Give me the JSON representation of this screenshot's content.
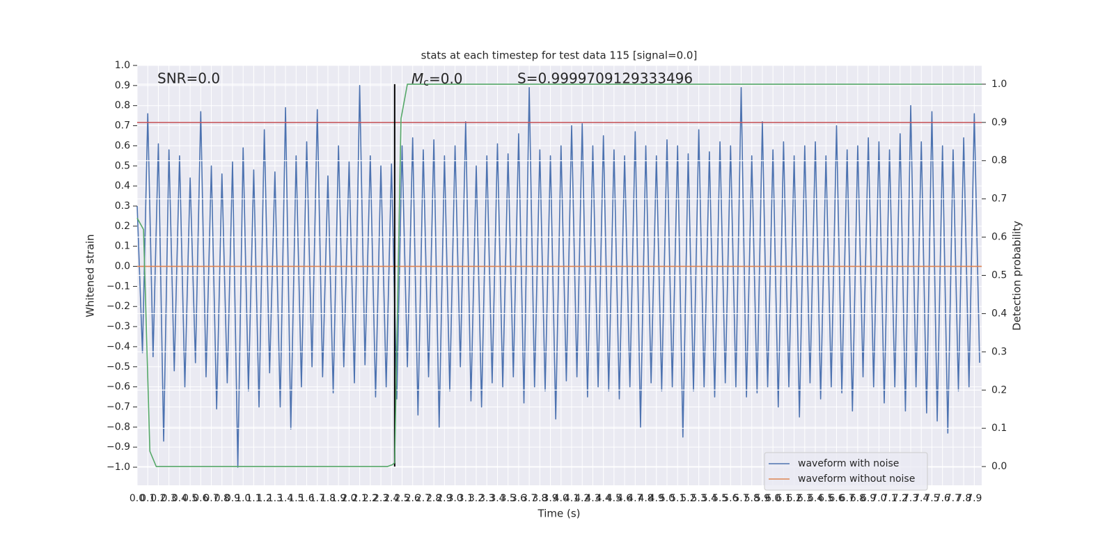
{
  "chart_data": {
    "type": "line",
    "title": "stats at each timestep for test data 115 [signal=0.0]",
    "x_label": "Time (s)",
    "y_label": "Whitened strain",
    "y2_label": "Detection probability",
    "annotations": [
      "SNR=0.0",
      {
        "symbol": "M",
        "subscript": "c",
        "text": "=0.0"
      },
      "S=0.9999709129333496"
    ],
    "xlim": [
      0,
      7.97
    ],
    "ylim": [
      -1.09,
      1.0
    ],
    "y2lim": [
      -0.049,
      1.049
    ],
    "xticks": [
      {
        "value": 0,
        "label": "0.0"
      },
      0.1,
      0.2,
      0.3,
      0.4,
      0.5,
      0.6,
      0.7,
      0.8,
      0.9,
      {
        "value": 1,
        "label": "1.0"
      },
      1.1,
      1.2,
      1.3,
      1.4,
      1.5,
      1.6,
      1.7,
      1.8,
      1.9,
      {
        "value": 2,
        "label": "2.0"
      },
      2.1,
      2.2,
      2.3,
      2.4,
      2.5,
      2.6,
      2.7,
      2.8,
      2.9,
      {
        "value": 3,
        "label": "3.0"
      },
      3.1,
      3.2,
      3.3,
      3.4,
      3.5,
      3.6,
      3.7,
      3.8,
      3.9,
      {
        "value": 4,
        "label": "4.0"
      },
      4.1,
      4.2,
      4.3,
      4.4,
      4.5,
      4.6,
      4.7,
      4.8,
      4.9,
      {
        "value": 5,
        "label": "5.0"
      },
      5.1,
      5.2,
      5.3,
      5.4,
      5.5,
      5.6,
      5.7,
      5.8,
      5.9,
      {
        "value": 6,
        "label": "6.0"
      },
      6.1,
      6.2,
      6.3,
      6.4,
      6.5,
      6.6,
      6.7,
      6.8,
      6.9,
      {
        "value": 7,
        "label": "7.0"
      },
      7.1,
      7.2,
      7.3,
      7.4,
      7.5,
      7.6,
      7.7,
      7.8,
      7.9
    ],
    "yticks": [
      {
        "value": -1,
        "label": "−1.0"
      },
      {
        "value": -0.9,
        "label": "−0.9"
      },
      {
        "value": -0.8,
        "label": "−0.8"
      },
      {
        "value": -0.7,
        "label": "−0.7"
      },
      {
        "value": -0.6,
        "label": "−0.6"
      },
      {
        "value": -0.5,
        "label": "−0.5"
      },
      {
        "value": -0.4,
        "label": "−0.4"
      },
      {
        "value": -0.3,
        "label": "−0.3"
      },
      {
        "value": -0.2,
        "label": "−0.2"
      },
      {
        "value": -0.1,
        "label": "−0.1"
      },
      {
        "value": 0,
        "label": "0.0"
      },
      0.1,
      0.2,
      0.3,
      0.4,
      0.5,
      0.6,
      0.7,
      0.8,
      0.9,
      {
        "value": 1,
        "label": "1.0"
      }
    ],
    "y2ticks": [
      {
        "value": 0,
        "label": "0.0"
      },
      0.1,
      0.2,
      0.3,
      0.4,
      0.5,
      0.6,
      0.7,
      0.8,
      0.9,
      {
        "value": 1,
        "label": "1.0"
      }
    ],
    "grid": true,
    "y2grid": true,
    "legend": "lower right",
    "hlines": [
      {
        "axis": "y2",
        "value": 0.9,
        "color": "#c44e52"
      }
    ],
    "vlines": [
      {
        "x": 2.43,
        "axis": "y2",
        "ymin": 0,
        "ymax": 1,
        "color": "#000000"
      }
    ],
    "series": [
      {
        "name": "waveform with noise",
        "color": "#4c72b0",
        "x": [
          0,
          0.05,
          0.1,
          0.15,
          0.2,
          0.25,
          0.3,
          0.35,
          0.4,
          0.45,
          0.5,
          0.55,
          0.6,
          0.65,
          0.7,
          0.75,
          0.8,
          0.85,
          0.9,
          0.95,
          1,
          1.05,
          1.1,
          1.15,
          1.2,
          1.25,
          1.3,
          1.35,
          1.4,
          1.45,
          1.5,
          1.55,
          1.6,
          1.65,
          1.7,
          1.75,
          1.8,
          1.85,
          1.9,
          1.95,
          2,
          2.05,
          2.1,
          2.15,
          2.2,
          2.25,
          2.3,
          2.35,
          2.4,
          2.45,
          2.5,
          2.55,
          2.6,
          2.65,
          2.7,
          2.75,
          2.8,
          2.85,
          2.9,
          2.95,
          3,
          3.05,
          3.1,
          3.15,
          3.2,
          3.25,
          3.3,
          3.35,
          3.4,
          3.45,
          3.5,
          3.55,
          3.6,
          3.65,
          3.7,
          3.75,
          3.8,
          3.85,
          3.9,
          3.95,
          4,
          4.05,
          4.1,
          4.15,
          4.2,
          4.25,
          4.3,
          4.35,
          4.4,
          4.45,
          4.5,
          4.55,
          4.6,
          4.65,
          4.7,
          4.75,
          4.8,
          4.85,
          4.9,
          4.95,
          5,
          5.05,
          5.1,
          5.15,
          5.2,
          5.25,
          5.3,
          5.35,
          5.4,
          5.45,
          5.5,
          5.55,
          5.6,
          5.65,
          5.7,
          5.75,
          5.8,
          5.85,
          5.9,
          5.95,
          6,
          6.05,
          6.1,
          6.15,
          6.2,
          6.25,
          6.3,
          6.35,
          6.4,
          6.45,
          6.5,
          6.55,
          6.6,
          6.65,
          6.7,
          6.75,
          6.8,
          6.85,
          6.9,
          6.95,
          7,
          7.05,
          7.1,
          7.15,
          7.2,
          7.25,
          7.3,
          7.35,
          7.4,
          7.45,
          7.5,
          7.55,
          7.6,
          7.65,
          7.7,
          7.75,
          7.8,
          7.85,
          7.9,
          7.95
        ],
        "values": [
          0.3,
          -0.43,
          0.76,
          -0.45,
          0.61,
          -0.87,
          0.58,
          -0.52,
          0.55,
          -0.6,
          0.44,
          -0.48,
          0.77,
          -0.55,
          0.5,
          -0.71,
          0.46,
          -0.58,
          0.52,
          -1.0,
          0.59,
          -0.62,
          0.48,
          -0.7,
          0.68,
          -0.53,
          0.47,
          -0.7,
          0.79,
          -0.81,
          0.55,
          -0.6,
          0.62,
          -0.5,
          0.78,
          -0.55,
          0.45,
          -0.63,
          0.6,
          -0.5,
          0.52,
          -0.58,
          0.9,
          -0.49,
          0.55,
          -0.65,
          0.5,
          -0.6,
          0.51,
          -0.66,
          0.6,
          -0.5,
          0.64,
          -0.74,
          0.58,
          -0.55,
          0.63,
          -0.8,
          0.55,
          -0.62,
          0.6,
          -0.5,
          0.72,
          -0.67,
          0.5,
          -0.7,
          0.55,
          -0.58,
          0.61,
          -0.6,
          0.56,
          -0.55,
          0.66,
          -0.68,
          0.89,
          -0.6,
          0.58,
          -0.62,
          0.55,
          -0.76,
          0.6,
          -0.57,
          0.7,
          -0.55,
          0.71,
          -0.65,
          0.6,
          -0.6,
          0.65,
          -0.62,
          0.58,
          -0.66,
          0.55,
          -0.6,
          0.67,
          -0.8,
          0.6,
          -0.58,
          0.55,
          -0.62,
          0.63,
          -0.6,
          0.6,
          -0.85,
          0.56,
          -0.62,
          0.68,
          -0.6,
          0.57,
          -0.65,
          0.62,
          -0.58,
          0.6,
          -0.6,
          0.89,
          -0.65,
          0.55,
          -0.63,
          0.72,
          -0.6,
          0.58,
          -0.7,
          0.62,
          -0.6,
          0.55,
          -0.75,
          0.6,
          -0.58,
          0.62,
          -0.66,
          0.55,
          -0.6,
          0.7,
          -0.63,
          0.58,
          -0.72,
          0.6,
          -0.55,
          0.64,
          -0.6,
          0.62,
          -0.68,
          0.58,
          -0.6,
          0.66,
          -0.72,
          0.8,
          -0.6,
          0.62,
          -0.73,
          0.77,
          -0.77,
          0.6,
          -0.83,
          0.58,
          -0.62,
          0.64,
          -0.6,
          0.76,
          -0.48
        ]
      },
      {
        "name": "waveform without noise",
        "color": "#dd8452",
        "x": [
          0,
          7.97
        ],
        "values": [
          0,
          0
        ]
      },
      {
        "color": "#55a868",
        "axis": "y2",
        "x": [
          0,
          0.06,
          0.12,
          0.18,
          2.36,
          2.41,
          2.43,
          2.49,
          2.55,
          7.97
        ],
        "values": [
          0.65,
          0.62,
          0.04,
          0,
          0,
          0.005,
          0.01,
          0.91,
          1,
          1
        ]
      }
    ]
  }
}
